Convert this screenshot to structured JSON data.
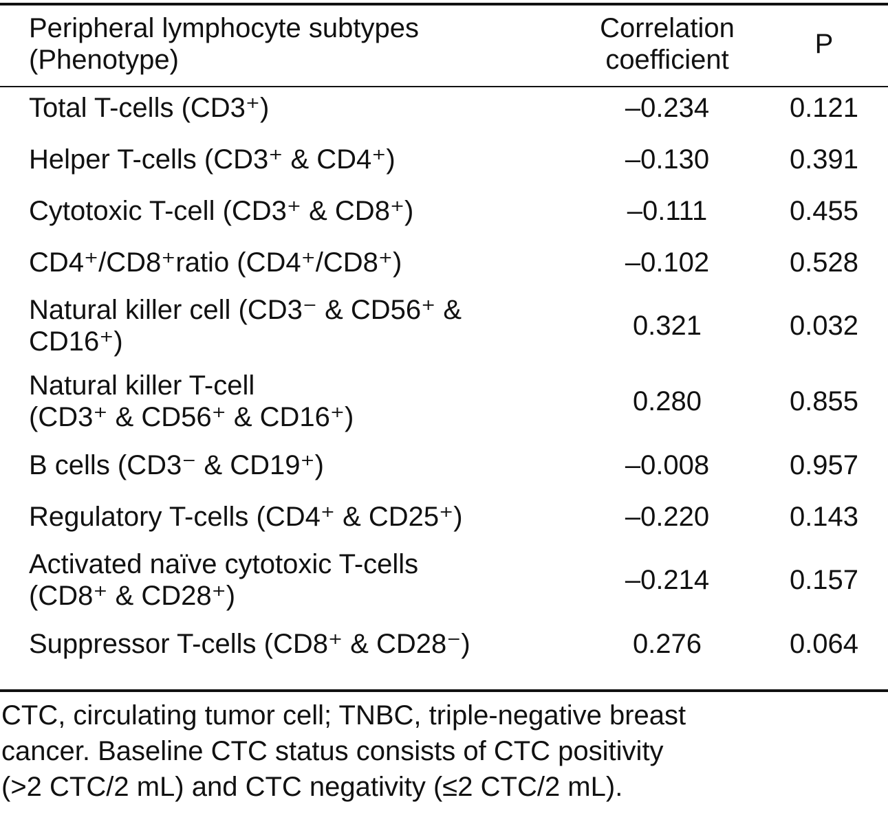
{
  "table": {
    "headers": {
      "subtype_line1": "Peripheral lymphocyte subtypes",
      "subtype_line2": "(Phenotype)",
      "coef_line1": "Correlation",
      "coef_line2": "coefficient",
      "p": "P"
    },
    "rows": [
      {
        "name": "Total T-cells (CD3⁺)",
        "name2": "",
        "coef": "–0.234",
        "p": "0.121"
      },
      {
        "name": "Helper T-cells (CD3⁺ & CD4⁺)",
        "name2": "",
        "coef": "–0.130",
        "p": "0.391"
      },
      {
        "name": "Cytotoxic T-cell (CD3⁺ & CD8⁺)",
        "name2": "",
        "coef": "–0.111",
        "p": "0.455"
      },
      {
        "name": "CD4⁺/CD8⁺ratio (CD4⁺/CD8⁺)",
        "name2": "",
        "coef": "–0.102",
        "p": "0.528"
      },
      {
        "name": "Natural killer cell (CD3⁻ & CD56⁺ &",
        "name2": "CD16⁺)",
        "coef": "0.321",
        "p": "0.032"
      },
      {
        "name": "Natural killer T-cell",
        "name2": "(CD3⁺ & CD56⁺ & CD16⁺)",
        "coef": "0.280",
        "p": "0.855"
      },
      {
        "name": "B cells (CD3⁻ & CD19⁺)",
        "name2": "",
        "coef": "–0.008",
        "p": "0.957"
      },
      {
        "name": "Regulatory T-cells (CD4⁺ & CD25⁺)",
        "name2": "",
        "coef": "–0.220",
        "p": "0.143"
      },
      {
        "name": "Activated naïve cytotoxic T-cells",
        "name2": "(CD8⁺ & CD28⁺)",
        "coef": "–0.214",
        "p": "0.157"
      },
      {
        "name": "Suppressor T-cells (CD8⁺ & CD28⁻)",
        "name2": "",
        "coef": "0.276",
        "p": "0.064"
      }
    ]
  },
  "footnote": {
    "line1": "CTC, circulating tumor cell; TNBC, triple-negative breast",
    "line2": "cancer. Baseline CTC status consists of CTC positivity",
    "line3": "(>2 CTC/2 mL) and CTC negativity (≤2 CTC/2 mL)."
  }
}
